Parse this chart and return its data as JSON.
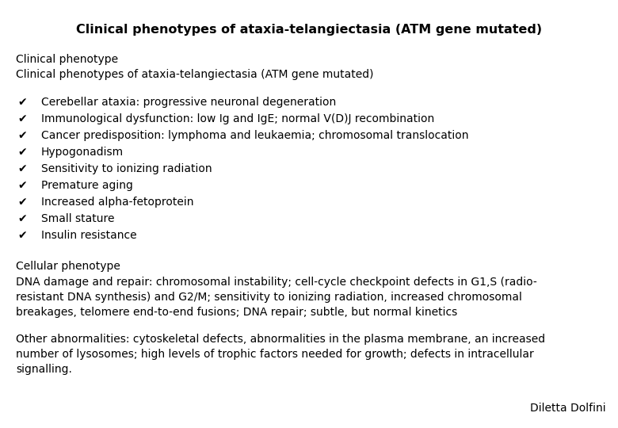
{
  "title": "Clinical phenotypes of ataxia-telangiectasia (ATM gene mutated)",
  "bg_color": "#ffffff",
  "text_color": "#000000",
  "title_fontsize": 11.5,
  "body_fontsize": 10,
  "label1": "Clinical phenotype",
  "label2": "Clinical phenotypes of ataxia-telangiectasia (ATM gene mutated)",
  "checkmark": "✔",
  "bullet_items": [
    "Cerebellar ataxia: progressive neuronal degeneration",
    "Immunological dysfunction: low Ig and IgE; normal V(D)J recombination",
    "Cancer predisposition: lymphoma and leukaemia; chromosomal translocation",
    "Hypogonadism",
    "Sensitivity to ionizing radiation",
    "Premature aging",
    "Increased alpha-fetoprotein",
    "Small stature",
    "Insulin resistance"
  ],
  "section2_label": "Cellular phenotype",
  "section2_text": "DNA damage and repair: chromosomal instability; cell-cycle checkpoint defects in G1,S (radio-\nresistant DNA synthesis) and G2/M; sensitivity to ionizing radiation, increased chromosomal\nbreakages, telomere end-to-end fusions; DNA repair; subtle, but normal kinetics",
  "section3_text": "Other abnormalities: cytoskeletal defects, abnormalities in the plasma membrane, an increased\nnumber of lysosomes; high levels of trophic factors needed for growth; defects in intracellular\nsignalling.",
  "author": "Diletta Dolfini",
  "figsize": [
    7.8,
    5.4
  ],
  "dpi": 100
}
